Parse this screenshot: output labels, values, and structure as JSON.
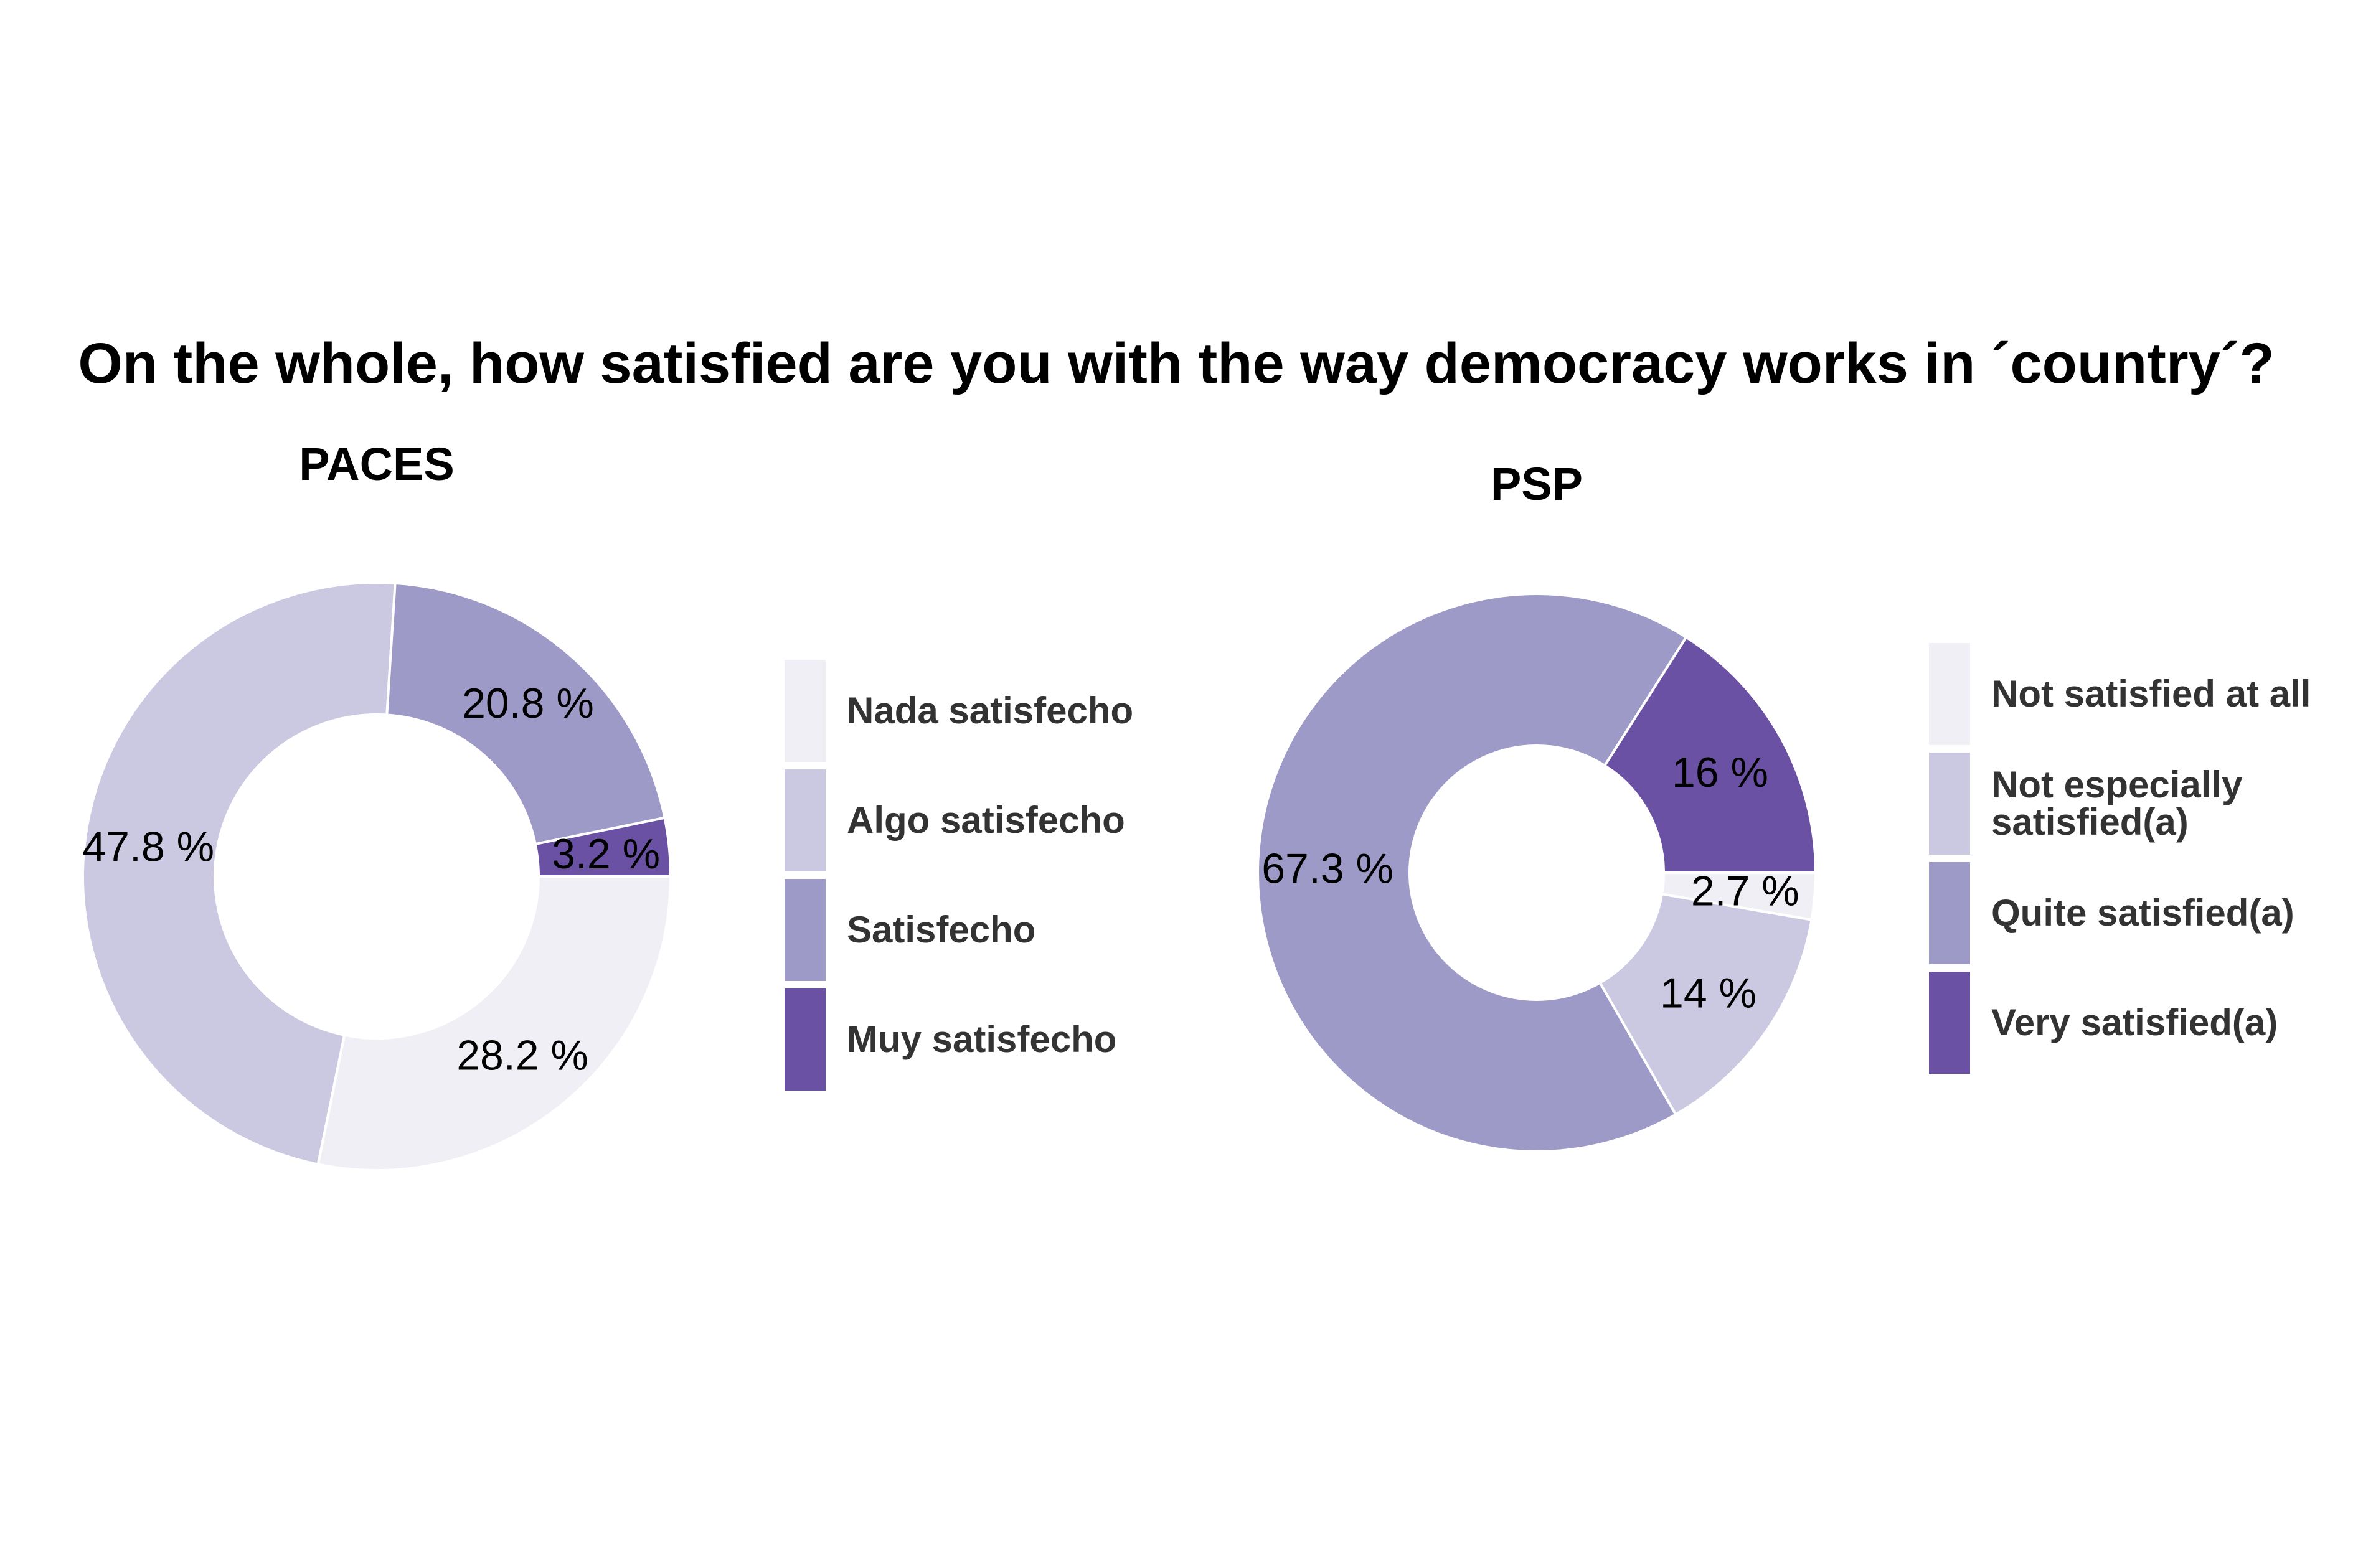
{
  "title": "On the whole, how satisfied are you with the way democracy works in ´country´?",
  "chart_data": [
    {
      "type": "pie",
      "title": "PACES",
      "categories": [
        "Nada satisfecho",
        "Algo satisfecho",
        "Satisfecho",
        "Muy satisfecho"
      ],
      "values": [
        28.2,
        47.8,
        20.8,
        3.2
      ],
      "labels": [
        "28.2 %",
        "47.8 %",
        "20.8 %",
        "3.2 %"
      ],
      "colors": [
        "#f0eff6",
        "#cbc9e2",
        "#9e9ac8",
        "#6a51a3"
      ],
      "legend": {
        "position": "right",
        "entries": [
          "Nada satisfecho",
          "Algo satisfecho",
          "Satisfecho",
          "Muy satisfecho"
        ]
      }
    },
    {
      "type": "pie",
      "title": "PSP",
      "categories": [
        "Not satisfied at all",
        "Not especially satisfied(a)",
        "Quite satisfied(a)",
        "Very satisfied(a)"
      ],
      "values": [
        2.7,
        14,
        67.3,
        16
      ],
      "labels": [
        "2.7 %",
        "14 %",
        "67.3 %",
        "16 %"
      ],
      "colors": [
        "#f0eff6",
        "#cbc9e2",
        "#9e9ac8",
        "#6a51a3"
      ],
      "legend": {
        "position": "right",
        "entries": [
          [
            "Not satisfied at all"
          ],
          [
            "Not especially",
            "satisfied(a)"
          ],
          [
            "Quite satisfied(a)"
          ],
          [
            "Very satisfied(a)"
          ]
        ]
      }
    }
  ]
}
